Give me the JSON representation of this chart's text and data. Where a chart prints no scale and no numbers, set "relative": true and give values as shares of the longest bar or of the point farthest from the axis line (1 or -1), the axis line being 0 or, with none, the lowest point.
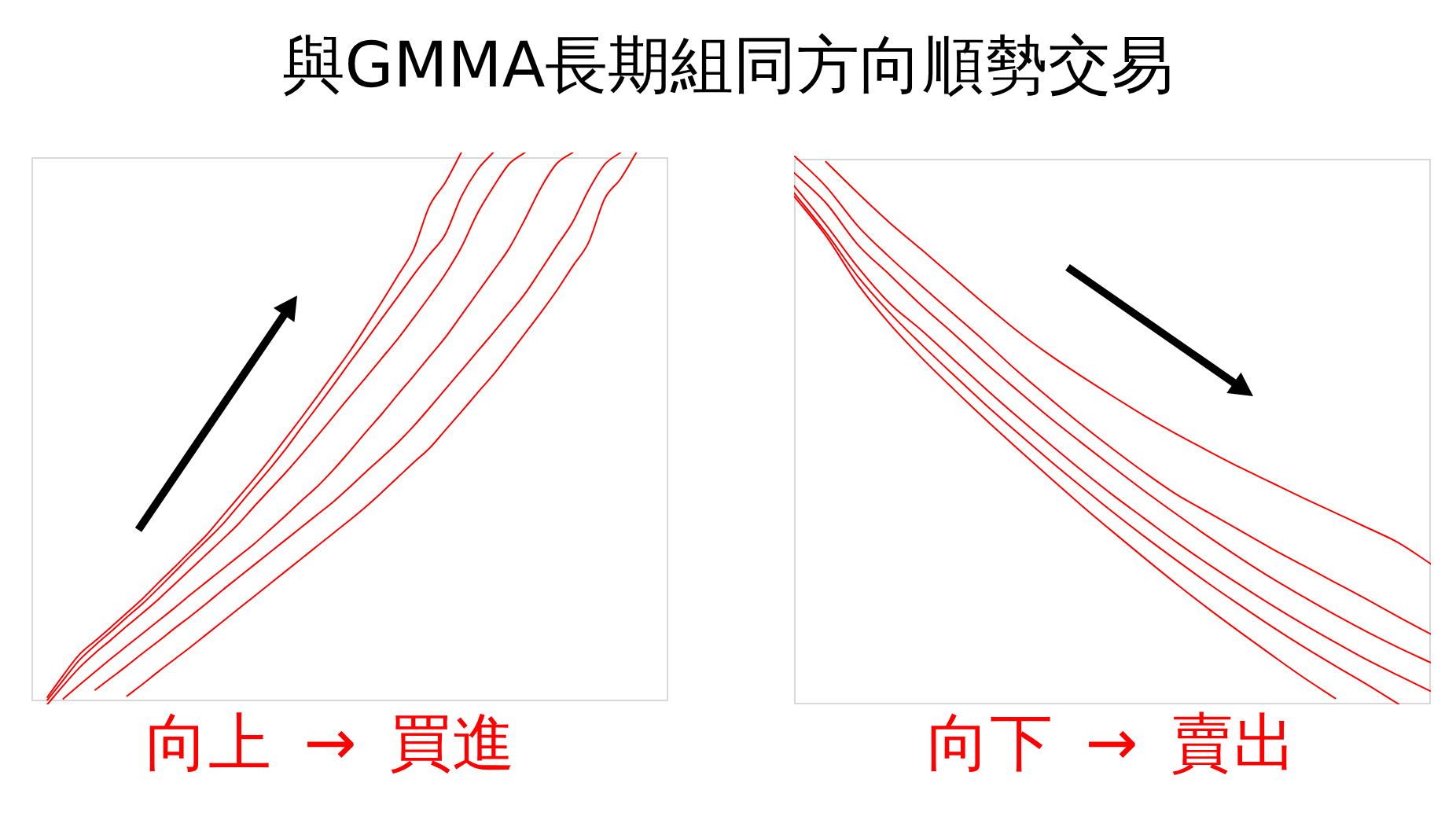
{
  "chart_data": [
    {
      "type": "line",
      "title": "與GMMA長期組同方向順勢交易",
      "relative": true,
      "marker": "none",
      "line_style": "solid",
      "categories": [
        null,
        null,
        null,
        null,
        null,
        null,
        null,
        null,
        null,
        null,
        null,
        null,
        null,
        null,
        null,
        null,
        null,
        null,
        null,
        null,
        null,
        null,
        null,
        null,
        null,
        null,
        null,
        null,
        null,
        null,
        null,
        null,
        null,
        null,
        null,
        null,
        null,
        null,
        null,
        null,
        null
      ],
      "series": [
        {
          "color": "#ff0000",
          "values": [
            null,
            0.013,
            0.053,
            0.09,
            0.115,
            0.14,
            0.166,
            0.192,
            0.221,
            0.249,
            0.278,
            0.307,
            0.341,
            0.375,
            0.409,
            0.445,
            0.483,
            0.521,
            0.56,
            0.6,
            0.64,
            0.684,
            0.729,
            0.776,
            0.824,
            0.903,
            0.946,
            1.0,
            null,
            null,
            null,
            null,
            null,
            null,
            null,
            null,
            null,
            null,
            null,
            null,
            null
          ]
        },
        {
          "color": "#ff0000",
          "values": [
            null,
            0.008,
            0.044,
            0.08,
            0.107,
            0.132,
            0.158,
            0.183,
            0.211,
            0.24,
            0.269,
            0.297,
            0.326,
            0.36,
            0.394,
            0.428,
            0.464,
            0.503,
            0.541,
            0.58,
            0.62,
            0.659,
            0.699,
            0.738,
            0.778,
            0.815,
            0.852,
            0.92,
            0.968,
            1.0,
            null,
            null,
            null,
            null,
            null,
            null,
            null,
            null,
            null,
            null,
            null
          ]
        },
        {
          "color": "#ff0000",
          "values": [
            null,
            0,
            0.034,
            0.066,
            0.093,
            0.117,
            0.142,
            0.166,
            0.191,
            0.218,
            0.245,
            0.272,
            0.299,
            0.327,
            0.359,
            0.39,
            0.421,
            0.454,
            0.488,
            0.523,
            0.558,
            0.592,
            0.627,
            0.662,
            0.7,
            0.739,
            0.78,
            0.828,
            0.889,
            0.937,
            0.979,
            1.0,
            null,
            null,
            null,
            null,
            null,
            null,
            null,
            null,
            null
          ]
        },
        {
          "color": "#ff0000",
          "values": [
            null,
            null,
            0.01,
            0.035,
            0.059,
            0.083,
            0.106,
            0.129,
            0.152,
            0.175,
            0.199,
            0.222,
            0.245,
            0.268,
            0.291,
            0.317,
            0.343,
            0.37,
            0.396,
            0.426,
            0.459,
            0.493,
            0.526,
            0.561,
            0.595,
            0.63,
            0.665,
            0.705,
            0.745,
            0.785,
            0.826,
            0.879,
            0.936,
            0.98,
            1.0,
            null,
            null,
            null,
            null,
            null,
            null
          ]
        },
        {
          "color": "#ff0000",
          "values": [
            null,
            null,
            null,
            null,
            0.026,
            0.048,
            0.07,
            0.093,
            0.115,
            0.138,
            0.16,
            0.183,
            0.207,
            0.23,
            0.253,
            0.276,
            0.299,
            0.322,
            0.345,
            0.368,
            0.394,
            0.421,
            0.447,
            0.474,
            0.504,
            0.537,
            0.571,
            0.605,
            0.639,
            0.673,
            0.708,
            0.744,
            0.787,
            0.831,
            0.874,
            0.932,
            0.978,
            1.0,
            null,
            null,
            null
          ]
        },
        {
          "color": "#ff0000",
          "values": [
            null,
            null,
            null,
            null,
            null,
            null,
            0.015,
            0.037,
            0.06,
            0.082,
            0.104,
            0.127,
            0.15,
            0.173,
            0.196,
            0.219,
            0.242,
            0.265,
            0.288,
            0.311,
            0.334,
            0.358,
            0.384,
            0.411,
            0.438,
            0.464,
            0.497,
            0.53,
            0.564,
            0.597,
            0.634,
            0.672,
            0.71,
            0.75,
            0.794,
            0.837,
            0.916,
            0.952,
            1.0,
            null,
            null
          ]
        }
      ],
      "annotations": [
        "向上 → 買進"
      ]
    },
    {
      "type": "line",
      "relative": true,
      "marker": "none",
      "line_style": "solid",
      "categories": [
        null,
        null,
        null,
        null,
        null,
        null,
        null,
        null,
        null,
        null,
        null,
        null,
        null,
        null,
        null,
        null,
        null,
        null,
        null,
        null,
        null
      ],
      "series": [
        {
          "color": "#ff0000",
          "values": [
            null,
            0.989,
            0.932,
            0.878,
            0.829,
            0.779,
            0.729,
            0.681,
            0.638,
            0.599,
            0.562,
            0.526,
            0.493,
            0.462,
            0.432,
            0.404,
            0.376,
            0.349,
            0.322,
            0.294,
            0.256
          ]
        },
        {
          "color": "#ff0000",
          "values": [
            1.0,
            0.944,
            0.872,
            0.815,
            0.763,
            0.712,
            0.661,
            0.608,
            0.559,
            0.511,
            0.466,
            0.423,
            0.383,
            0.35,
            0.317,
            0.284,
            0.253,
            0.222,
            0.191,
            0.159,
            0.128
          ]
        },
        {
          "color": "#ff0000",
          "values": [
            0.969,
            0.914,
            0.838,
            0.783,
            0.727,
            0.676,
            0.623,
            0.573,
            0.524,
            0.478,
            0.433,
            0.389,
            0.347,
            0.306,
            0.267,
            0.23,
            0.196,
            0.163,
            0.132,
            0.103,
            0.076
          ]
        },
        {
          "color": "#ff0000",
          "values": [
            0.945,
            0.874,
            0.797,
            0.731,
            0.682,
            0.629,
            0.576,
            0.525,
            0.476,
            0.428,
            0.382,
            0.339,
            0.296,
            0.256,
            0.218,
            0.181,
            0.146,
            0.113,
            0.081,
            0.052,
            0.024
          ]
        },
        {
          "color": "#ff0000",
          "values": [
            0.932,
            0.86,
            0.78,
            0.714,
            0.656,
            0.601,
            0.547,
            0.496,
            0.446,
            0.398,
            0.351,
            0.306,
            0.263,
            0.221,
            0.181,
            0.142,
            0.105,
            0.07,
            0.036,
            0,
            null
          ]
        },
        {
          "color": "#ff0000",
          "values": [
            0.926,
            0.854,
            0.766,
            0.694,
            0.632,
            0.575,
            0.52,
            0.467,
            0.415,
            0.364,
            0.315,
            0.267,
            0.22,
            0.175,
            0.132,
            0.09,
            0.049,
            0.011,
            null,
            null,
            null
          ]
        }
      ],
      "annotations": [
        "向下 → 賣出"
      ]
    }
  ]
}
